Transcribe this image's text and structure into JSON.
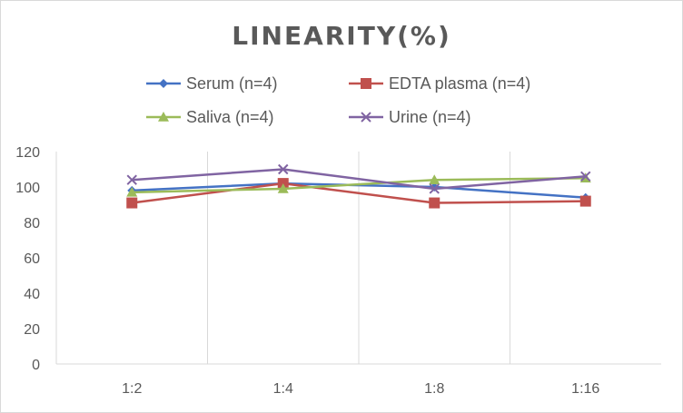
{
  "chart_data": {
    "type": "line",
    "title": "LINEARITY(%)",
    "categories": [
      "1:2",
      "1:4",
      "1:8",
      "1:16"
    ],
    "ylim": [
      0,
      120
    ],
    "yticks": [
      0,
      20,
      40,
      60,
      80,
      100,
      120
    ],
    "grid": "vertical",
    "legend_position": "top",
    "series": [
      {
        "name": "Serum (n=4)",
        "values": [
          98,
          102,
          100,
          94
        ],
        "color": "#4472c4",
        "marker": "diamond"
      },
      {
        "name": "EDTA plasma (n=4)",
        "values": [
          91,
          102,
          91,
          92
        ],
        "color": "#c0504d",
        "marker": "square"
      },
      {
        "name": "Saliva (n=4)",
        "values": [
          97,
          99,
          104,
          105
        ],
        "color": "#9bbb59",
        "marker": "triangle"
      },
      {
        "name": "Urine (n=4)",
        "values": [
          104,
          110,
          99,
          106
        ],
        "color": "#8064a2",
        "marker": "x"
      }
    ]
  }
}
